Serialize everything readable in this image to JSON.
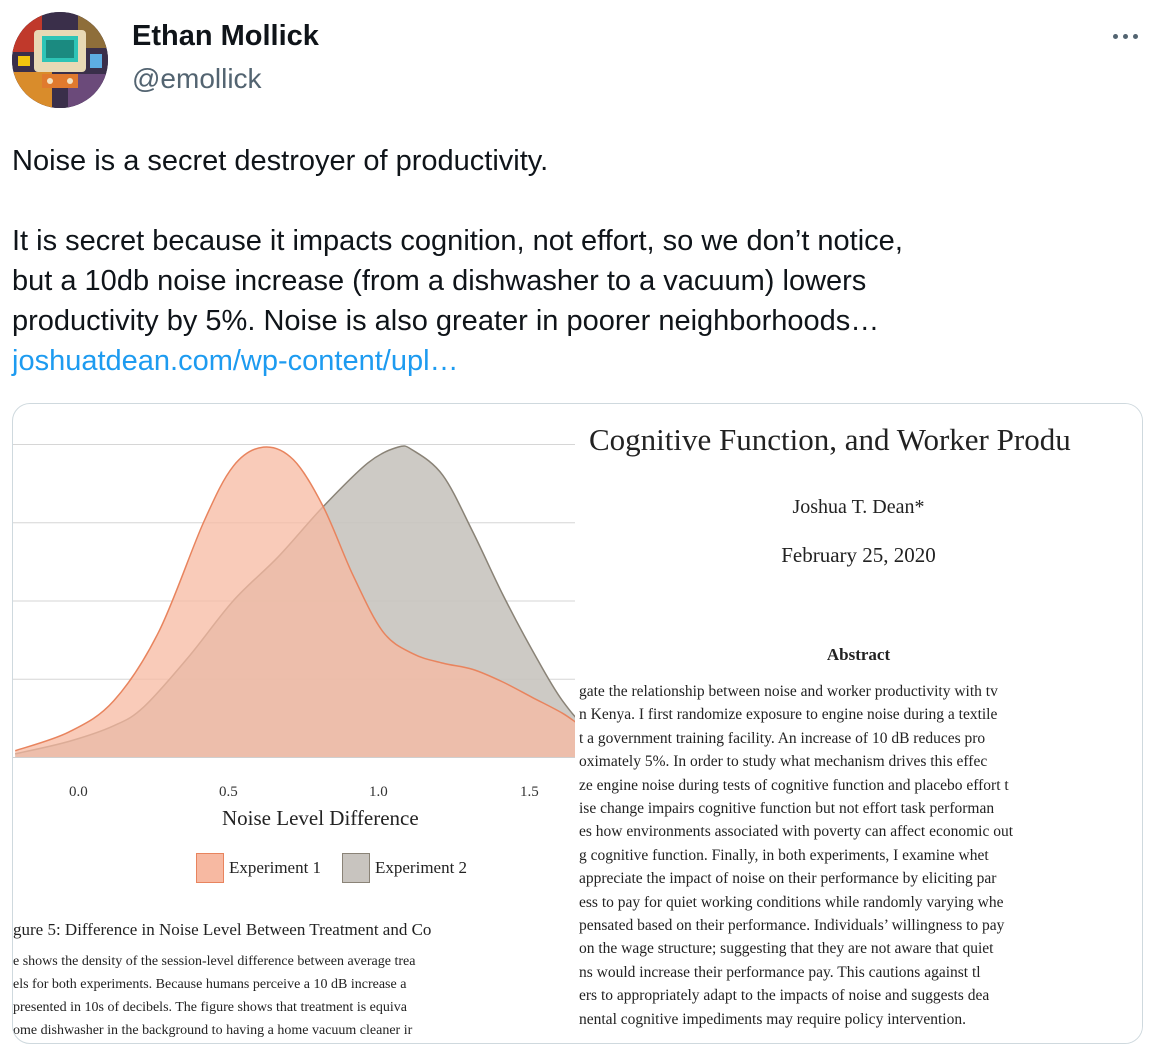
{
  "tweet": {
    "author_name": "Ethan Mollick",
    "handle": "@emollick",
    "more_icon": "more-horizontal-icon",
    "lines": [
      "Noise is a secret destroyer of productivity.",
      "",
      "It is secret because it impacts cognition, not effort, so we don’t notice,",
      "but a 10db noise increase (from a dishwasher to a vacuum) lowers",
      "productivity by 5%. Noise is also greater in poorer neighborhoods…"
    ],
    "link_text": "joshuatdean.com/wp-content/upl…"
  },
  "media": {
    "figure": {
      "x_ticks": [
        "0.0",
        "0.5",
        "1.0",
        "1.5"
      ],
      "xlabel": "Noise Level Difference",
      "legend": [
        "Experiment 1",
        "Experiment 2"
      ],
      "caption_title": "gure 5: Difference in Noise Level Between Treatment and Co",
      "caption_lines": [
        "e shows the density of the session-level difference between average trea",
        "els for both experiments.  Because humans perceive a 10 dB increase a",
        "presented in 10s of decibels.  The figure shows that treatment is equiva",
        "ome dishwasher in the background to having a home vacuum cleaner ir"
      ]
    },
    "paper": {
      "title": "Cognitive Function, and Worker Produ",
      "author": "Joshua T. Dean*",
      "date": "February 25, 2020",
      "abstract_heading": "Abstract",
      "abstract_lines": [
        "gate the relationship between noise and worker productivity with tv",
        "n Kenya.  I first randomize exposure to engine noise during a textile",
        "t a government training facility.  An increase of 10 dB reduces pro",
        "oximately 5%.  In order to study what mechanism drives this effec",
        "ze engine noise during tests of cognitive function and placebo effort t",
        "ise change impairs cognitive function but not effort task performan",
        "es how environments associated with poverty can affect economic out",
        "g cognitive function.  Finally, in both experiments, I examine whet",
        "appreciate the impact of noise on their performance by eliciting par",
        "ess to pay for quiet working conditions while randomly varying whe",
        "pensated based on their performance.  Individuals’ willingness to pay",
        "on the wage structure; suggesting that they are not aware that quiet",
        "ns would increase their performance pay.  This cautions against tl",
        "ers to appropriately adapt to the impacts of noise and suggests dea",
        "nental cognitive impediments may require policy intervention."
      ]
    }
  },
  "chart_data": {
    "type": "area",
    "xlabel": "Noise Level Difference",
    "ylabel": "",
    "x_ticks": [
      0.0,
      0.5,
      1.0,
      1.5
    ],
    "xlim": [
      -0.23,
      1.83
    ],
    "ylim": [
      0,
      1.0
    ],
    "grid": true,
    "legend_position": "bottom",
    "series": [
      {
        "name": "Experiment 1",
        "color": "#f7b9a2",
        "stroke": "#e8845e",
        "x": [
          -0.23,
          -0.05,
          0.1,
          0.25,
          0.4,
          0.5,
          0.6,
          0.7,
          0.8,
          0.9,
          1.0,
          1.1,
          1.2,
          1.3,
          1.4,
          1.5,
          1.6,
          1.7,
          1.83
        ],
        "y": [
          0.02,
          0.08,
          0.18,
          0.4,
          0.75,
          0.93,
          0.99,
          0.95,
          0.8,
          0.58,
          0.4,
          0.33,
          0.3,
          0.28,
          0.24,
          0.19,
          0.14,
          0.08,
          0.05
        ]
      },
      {
        "name": "Experiment 2",
        "color": "#c8c4bf",
        "stroke": "#8a8377",
        "x": [
          -0.23,
          -0.05,
          0.1,
          0.2,
          0.35,
          0.5,
          0.65,
          0.8,
          0.95,
          1.05,
          1.1,
          1.2,
          1.3,
          1.4,
          1.5,
          1.6,
          1.7,
          1.83
        ],
        "y": [
          0.01,
          0.05,
          0.1,
          0.16,
          0.32,
          0.5,
          0.64,
          0.8,
          0.94,
          0.99,
          0.98,
          0.9,
          0.72,
          0.52,
          0.34,
          0.18,
          0.08,
          0.04
        ]
      }
    ]
  }
}
